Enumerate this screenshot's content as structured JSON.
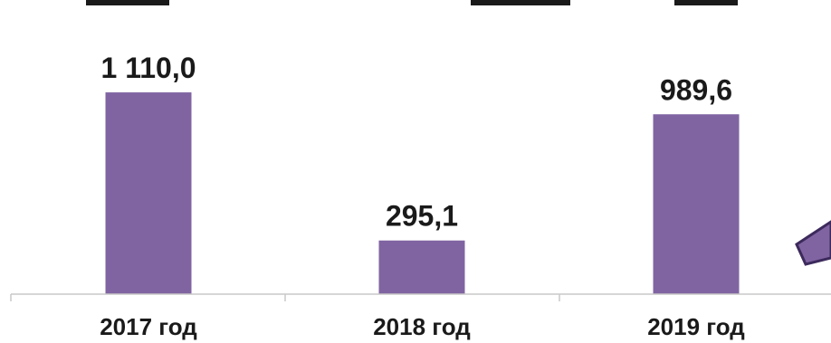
{
  "chart_data": {
    "type": "bar",
    "title": "",
    "xlabel": "",
    "ylabel": "",
    "categories": [
      "2017 год",
      "2018 год",
      "2019 год"
    ],
    "values": [
      1110.0,
      295.1,
      989.6
    ],
    "data_labels": [
      "1 110,0",
      "295,1",
      "989,6"
    ],
    "ylim": [
      0,
      1200
    ],
    "grid": false,
    "legend": "none",
    "bar_color": "#8064a2",
    "axis_color": "#c8c8c8"
  }
}
